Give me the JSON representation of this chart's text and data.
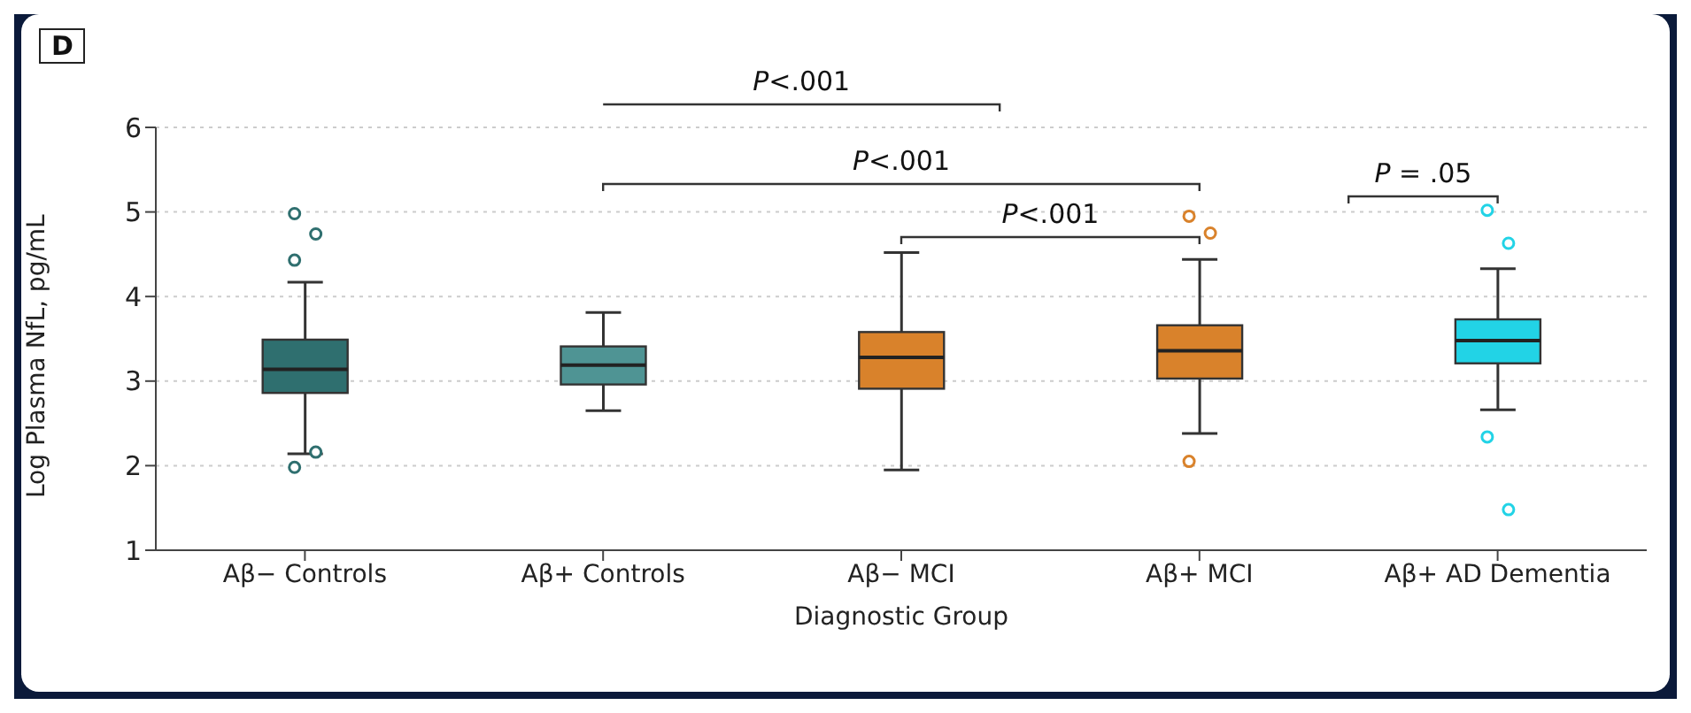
{
  "chart_data": {
    "type": "box",
    "categories": [
      "Aβ− Controls",
      "Aβ+ Controls",
      "Aβ− MCI",
      "Aβ+ MCI",
      "Aβ+ AD Dementia"
    ],
    "colors": [
      "#2f6f6f",
      "#4f9494",
      "#d9822b",
      "#d9822b",
      "#22d3e6"
    ],
    "boxes": [
      {
        "low": 2.14,
        "q1": 2.86,
        "median": 3.14,
        "q3": 3.49,
        "high": 4.17,
        "outliers": [
          4.98,
          4.74,
          4.43,
          2.16,
          1.98
        ]
      },
      {
        "low": 2.65,
        "q1": 2.96,
        "median": 3.19,
        "q3": 3.41,
        "high": 3.81
      },
      {
        "low": 1.95,
        "q1": 2.91,
        "median": 3.28,
        "q3": 3.58,
        "high": 4.52
      },
      {
        "low": 2.38,
        "q1": 3.03,
        "median": 3.36,
        "q3": 3.66,
        "high": 4.44,
        "outliers": [
          4.95,
          4.75,
          2.05
        ]
      },
      {
        "low": 2.66,
        "q1": 3.21,
        "median": 3.48,
        "q3": 3.73,
        "high": 4.33,
        "outliers": [
          5.02,
          4.63,
          2.34,
          1.48
        ]
      }
    ],
    "ylim": [
      1,
      6
    ],
    "yticks": [
      1,
      2,
      3,
      4,
      5,
      6
    ],
    "grid": "y",
    "xlabel": "Diagnostic Group",
    "ylabel": "Log Plasma NfL, pg/mL",
    "annotations": [
      "D",
      "P<.001",
      "P<.001",
      "P<.001",
      "P = .05"
    ]
  }
}
